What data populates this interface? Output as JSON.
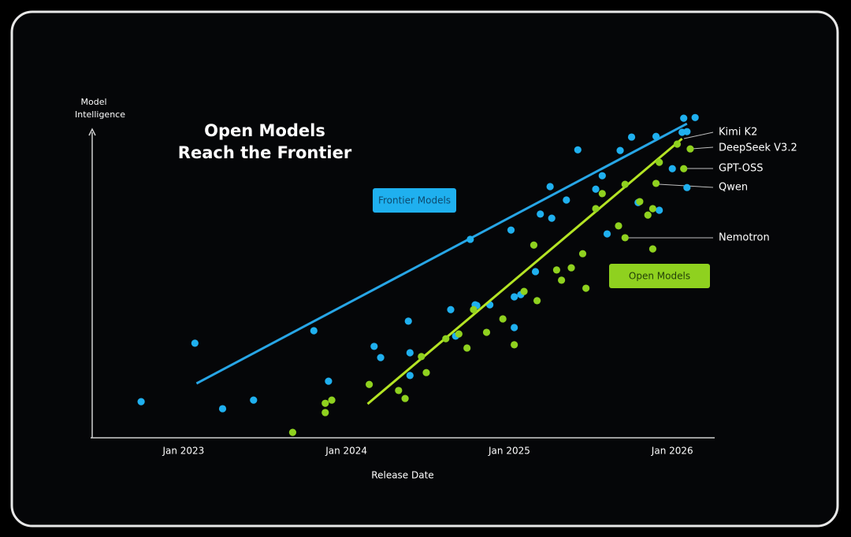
{
  "chart_data": {
    "type": "scatter",
    "title": [
      "Open Models",
      "Reach the Frontier"
    ],
    "y_label": [
      "Model",
      "Intelligence"
    ],
    "x_label": "Release Date",
    "xlim": [
      2022.43,
      2026.26
    ],
    "ylim": [
      0,
      102
    ],
    "xticks": [
      {
        "value": 2023,
        "label": "Jan 2023"
      },
      {
        "value": 2024,
        "label": "Jan 2024"
      },
      {
        "value": 2025,
        "label": "Jan 2025"
      },
      {
        "value": 2026,
        "label": "Jan 2026"
      }
    ],
    "grid": false,
    "series": [
      {
        "name": "Frontier Models",
        "color": "#1fb0ef",
        "line_color": "#27a6e6",
        "x": [
          2022.74,
          2023.07,
          2023.24,
          2023.43,
          2023.8,
          2023.89,
          2024.17,
          2024.21,
          2024.38,
          2024.39,
          2024.39,
          2024.64,
          2024.67,
          2024.76,
          2024.79,
          2024.8,
          2024.88,
          2025.01,
          2025.03,
          2025.03,
          2025.07,
          2025.16,
          2025.19,
          2025.25,
          2025.26,
          2025.35,
          2025.42,
          2025.53,
          2025.57,
          2025.6,
          2025.68,
          2025.75,
          2025.79,
          2025.9,
          2025.92,
          2026.0,
          2026.06,
          2026.07,
          2026.09,
          2026.09,
          2026.14
        ],
        "values": [
          11.3,
          29.6,
          9.1,
          11.8,
          33.5,
          17.7,
          28.6,
          25.1,
          36.5,
          26.6,
          19.5,
          40.1,
          31.8,
          62.1,
          41.6,
          41.4,
          41.6,
          65.0,
          44.1,
          34.5,
          44.8,
          52.0,
          70.0,
          78.6,
          68.7,
          74.4,
          90.1,
          77.8,
          82.0,
          63.8,
          89.9,
          94.1,
          73.6,
          94.3,
          71.2,
          84.2,
          95.6,
          100.0,
          95.8,
          78.3,
          100.2
        ],
        "trend": {
          "x": [
            2023.08,
            2026.09
          ],
          "values": [
            17.0,
            98.3
          ]
        }
      },
      {
        "name": "Open Models",
        "color": "#8fd11f",
        "line_color": "#b4e424",
        "x": [
          2023.67,
          2023.87,
          2023.87,
          2023.91,
          2024.14,
          2024.32,
          2024.36,
          2024.46,
          2024.49,
          2024.61,
          2024.69,
          2024.74,
          2024.78,
          2024.86,
          2024.96,
          2025.03,
          2025.09,
          2025.15,
          2025.17,
          2025.29,
          2025.32,
          2025.38,
          2025.45,
          2025.47,
          2025.53,
          2025.57,
          2025.67,
          2025.71,
          2025.71,
          2025.8,
          2025.85,
          2025.88,
          2025.88,
          2025.9,
          2025.92,
          2026.03,
          2026.07,
          2026.11
        ],
        "values": [
          1.7,
          10.8,
          7.9,
          11.8,
          16.7,
          14.8,
          12.3,
          25.4,
          20.4,
          31.0,
          32.5,
          28.1,
          40.1,
          33.0,
          37.2,
          29.1,
          45.8,
          60.3,
          42.9,
          52.5,
          49.3,
          53.2,
          57.6,
          46.8,
          71.7,
          76.4,
          66.3,
          62.6,
          79.3,
          73.9,
          69.7,
          59.1,
          71.7,
          79.6,
          86.2,
          91.9,
          84.2,
          90.4
        ],
        "trend": {
          "x": [
            2024.13,
            2026.06
          ],
          "values": [
            10.6,
            93.6
          ]
        }
      }
    ],
    "annotations": [
      "Kimi K2",
      "DeepSeek V3.2",
      "GPT-OSS",
      "Qwen",
      "Nemotron"
    ]
  }
}
